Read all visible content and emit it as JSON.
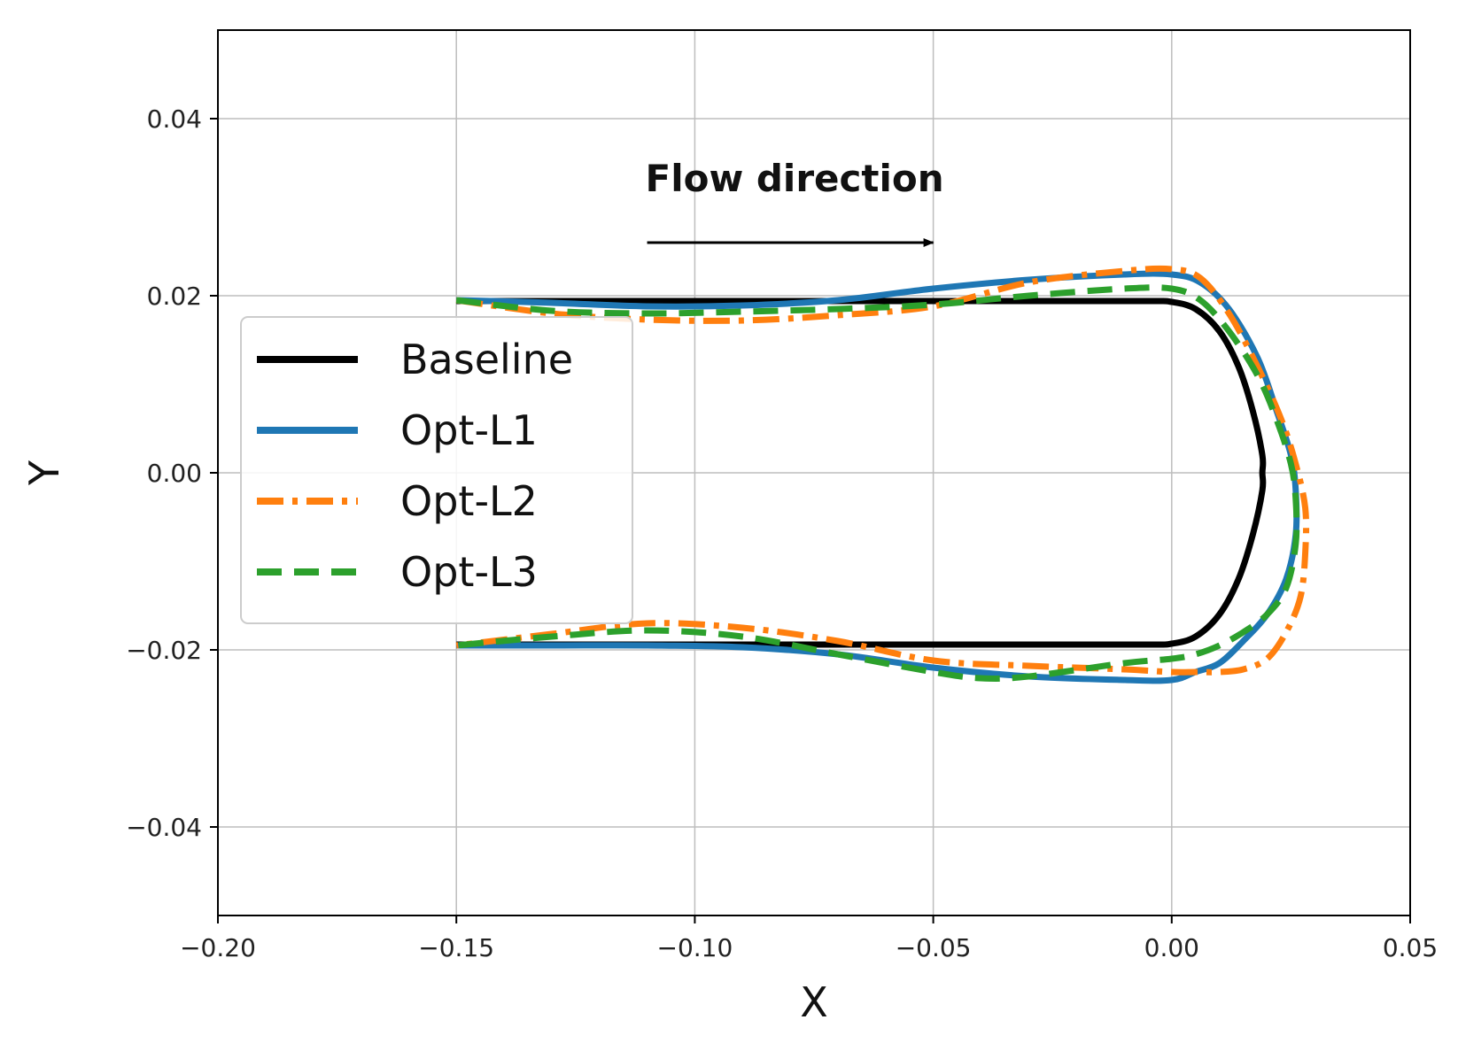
{
  "chart_data": {
    "type": "line",
    "title": "",
    "xlabel": "X",
    "ylabel": "Y",
    "xlim": [
      -0.2,
      0.05
    ],
    "ylim": [
      -0.05,
      0.05
    ],
    "xticks": [
      -0.2,
      -0.15,
      -0.1,
      -0.05,
      0.0,
      0.05
    ],
    "xtick_labels": [
      "−0.20",
      "−0.15",
      "−0.10",
      "−0.05",
      "0.00",
      "0.05"
    ],
    "yticks": [
      -0.04,
      -0.02,
      0.0,
      0.02,
      0.04
    ],
    "ytick_labels": [
      "−0.04",
      "−0.02",
      "0.00",
      "0.02",
      "0.04"
    ],
    "grid": true,
    "legend_position": "center-left",
    "annotation": {
      "text": "Flow direction",
      "arrow_from": [
        -0.11,
        0.026
      ],
      "arrow_to": [
        -0.05,
        0.026
      ]
    },
    "series": [
      {
        "name": "Baseline",
        "color": "#000000",
        "style": "solid",
        "x": [
          -0.15,
          -0.12,
          -0.09,
          -0.06,
          -0.03,
          -0.005,
          0.0,
          0.005,
          0.01,
          0.014,
          0.017,
          0.019,
          0.019,
          0.019,
          0.017,
          0.014,
          0.01,
          0.005,
          0.0,
          -0.005,
          -0.03,
          -0.06,
          -0.09,
          -0.12,
          -0.15
        ],
        "y": [
          0.0194,
          0.0194,
          0.0194,
          0.0194,
          0.0194,
          0.0194,
          0.0193,
          0.0185,
          0.016,
          0.012,
          0.007,
          0.002,
          0.0,
          -0.002,
          -0.007,
          -0.012,
          -0.016,
          -0.0185,
          -0.0193,
          -0.0194,
          -0.0194,
          -0.0194,
          -0.0194,
          -0.0194,
          -0.0194
        ]
      },
      {
        "name": "Opt-L1",
        "color": "#1f77b4",
        "style": "solid",
        "x": [
          -0.15,
          -0.13,
          -0.11,
          -0.09,
          -0.07,
          -0.05,
          -0.03,
          -0.01,
          0.0,
          0.006,
          0.012,
          0.018,
          0.022,
          0.025,
          0.026,
          0.026,
          0.024,
          0.02,
          0.015,
          0.01,
          0.005,
          0.0,
          -0.01,
          -0.03,
          -0.05,
          -0.07,
          -0.09,
          -0.11,
          -0.13,
          -0.15
        ],
        "y": [
          0.0195,
          0.0192,
          0.0188,
          0.0189,
          0.0195,
          0.0208,
          0.0218,
          0.0224,
          0.0224,
          0.0215,
          0.0185,
          0.013,
          0.007,
          0.002,
          -0.002,
          -0.007,
          -0.012,
          -0.016,
          -0.019,
          -0.0215,
          -0.0225,
          -0.0234,
          -0.0234,
          -0.023,
          -0.022,
          -0.0205,
          -0.0197,
          -0.0195,
          -0.0195,
          -0.0195
        ]
      },
      {
        "name": "Opt-L2",
        "color": "#ff7f0e",
        "style": "dashdot",
        "x": [
          -0.15,
          -0.13,
          -0.11,
          -0.09,
          -0.07,
          -0.05,
          -0.03,
          -0.01,
          0.0,
          0.006,
          0.012,
          0.018,
          0.023,
          0.026,
          0.028,
          0.028,
          0.027,
          0.024,
          0.02,
          0.015,
          0.01,
          0.005,
          0.0,
          -0.01,
          -0.03,
          -0.05,
          -0.07,
          -0.09,
          -0.11,
          -0.13,
          -0.15
        ],
        "y": [
          0.0195,
          0.018,
          0.0173,
          0.0172,
          0.0178,
          0.0188,
          0.0215,
          0.0228,
          0.023,
          0.022,
          0.018,
          0.012,
          0.006,
          0.001,
          -0.004,
          -0.009,
          -0.014,
          -0.018,
          -0.021,
          -0.0222,
          -0.0225,
          -0.0225,
          -0.0225,
          -0.0222,
          -0.0218,
          -0.0212,
          -0.019,
          -0.0175,
          -0.017,
          -0.0182,
          -0.0195
        ]
      },
      {
        "name": "Opt-L3",
        "color": "#2ca02c",
        "style": "dashed",
        "x": [
          -0.15,
          -0.13,
          -0.11,
          -0.09,
          -0.07,
          -0.05,
          -0.03,
          -0.01,
          0.0,
          0.006,
          0.012,
          0.018,
          0.022,
          0.025,
          0.026,
          0.026,
          0.024,
          0.02,
          0.015,
          0.01,
          0.005,
          0.0,
          -0.01,
          -0.03,
          -0.04,
          -0.05,
          -0.07,
          -0.09,
          -0.11,
          -0.13,
          -0.15
        ],
        "y": [
          0.0195,
          0.0183,
          0.018,
          0.0182,
          0.0185,
          0.019,
          0.02,
          0.0208,
          0.0208,
          0.0195,
          0.016,
          0.011,
          0.006,
          0.001,
          -0.003,
          -0.008,
          -0.013,
          -0.016,
          -0.018,
          -0.0195,
          -0.0205,
          -0.021,
          -0.0215,
          -0.023,
          -0.0232,
          -0.0225,
          -0.0205,
          -0.0185,
          -0.0178,
          -0.0185,
          -0.0195
        ]
      }
    ]
  }
}
